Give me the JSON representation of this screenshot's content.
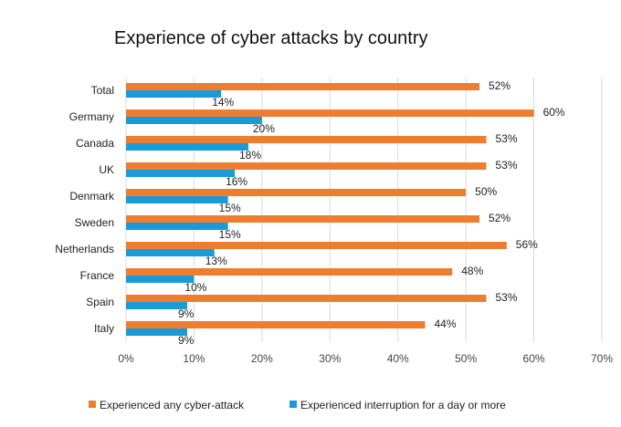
{
  "chart_data": {
    "type": "bar",
    "orientation": "horizontal",
    "title": "Experience of cyber attacks by country",
    "categories": [
      "Total",
      "Germany",
      "Canada",
      "UK",
      "Denmark",
      "Sweden",
      "Netherlands",
      "France",
      "Spain",
      "Italy"
    ],
    "series": [
      {
        "name": "Experienced any cyber-attack",
        "color": "#ED7D31",
        "values": [
          52,
          60,
          53,
          53,
          50,
          52,
          56,
          48,
          53,
          44
        ]
      },
      {
        "name": "Experienced interruption for a day or more",
        "color": "#1A9BD7",
        "values": [
          14,
          20,
          18,
          16,
          15,
          15,
          13,
          10,
          9,
          9
        ]
      }
    ],
    "xlim": [
      0,
      70
    ],
    "xticks": [
      0,
      10,
      20,
      30,
      40,
      50,
      60,
      70
    ],
    "tick_suffix": "%",
    "value_suffix": "%",
    "grid": "vertical",
    "grid_color": "#D9D9D9",
    "legend_position": "bottom"
  }
}
